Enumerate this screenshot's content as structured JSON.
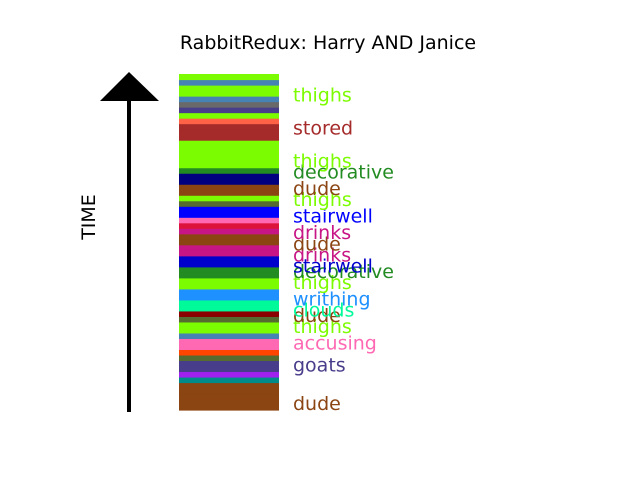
{
  "chart_data": {
    "type": "bar",
    "title": "RabbitRedux: Harry AND Janice",
    "ylabel": "TIME",
    "xlabel": "",
    "stripes": [
      {
        "color": "#8b4513"
      },
      {
        "color": "#8b4513"
      },
      {
        "color": "#8b4513"
      },
      {
        "color": "#8b4513"
      },
      {
        "color": "#8b4513"
      },
      {
        "color": "#008b8b"
      },
      {
        "color": "#a020f0"
      },
      {
        "color": "#483d8b"
      },
      {
        "color": "#483d8b"
      },
      {
        "color": "#556b2f"
      },
      {
        "color": "#ff4500"
      },
      {
        "color": "#ff69b4"
      },
      {
        "color": "#ff69b4"
      },
      {
        "color": "#4682b4"
      },
      {
        "color": "#7cfc00"
      },
      {
        "color": "#7cfc00"
      },
      {
        "color": "#556b2f"
      },
      {
        "color": "#8b0000"
      },
      {
        "color": "#00fa9a"
      },
      {
        "color": "#00fa9a"
      },
      {
        "color": "#1e90ff"
      },
      {
        "color": "#1e90ff"
      },
      {
        "color": "#7cfc00"
      },
      {
        "color": "#7cfc00"
      },
      {
        "color": "#228b22"
      },
      {
        "color": "#228b22"
      },
      {
        "color": "#0000cd"
      },
      {
        "color": "#0000cd"
      },
      {
        "color": "#c71585"
      },
      {
        "color": "#c71585"
      },
      {
        "color": "#8b4513"
      },
      {
        "color": "#8b4513"
      },
      {
        "color": "#c71585"
      },
      {
        "color": "#dc143c"
      },
      {
        "color": "#ff69b4"
      },
      {
        "color": "#0000ff"
      },
      {
        "color": "#0000ff"
      },
      {
        "color": "#556b2f"
      },
      {
        "color": "#7cfc00"
      },
      {
        "color": "#8b4513"
      },
      {
        "color": "#8b4513"
      },
      {
        "color": "#000080"
      },
      {
        "color": "#000080"
      },
      {
        "color": "#228b22"
      },
      {
        "color": "#7cfc00"
      },
      {
        "color": "#7cfc00"
      },
      {
        "color": "#7cfc00"
      },
      {
        "color": "#7cfc00"
      },
      {
        "color": "#7cfc00"
      },
      {
        "color": "#a52a2a"
      },
      {
        "color": "#a52a2a"
      },
      {
        "color": "#a52a2a"
      },
      {
        "color": "#ff6347"
      },
      {
        "color": "#7cfc00"
      },
      {
        "color": "#483d8b"
      },
      {
        "color": "#696969"
      },
      {
        "color": "#4682b4"
      },
      {
        "color": "#7cfc00"
      },
      {
        "color": "#7cfc00"
      },
      {
        "color": "#4682b4"
      },
      {
        "color": "#7cfc00"
      }
    ],
    "labels": [
      {
        "text": "dude",
        "position": 1,
        "color": "#8b4513"
      },
      {
        "text": "goats",
        "position": 8,
        "color": "#483d8b"
      },
      {
        "text": "accusing",
        "position": 12,
        "color": "#ff69b4"
      },
      {
        "text": "thighs",
        "position": 15,
        "color": "#7cfc00"
      },
      {
        "text": "dude",
        "position": 17,
        "color": "#8b4513"
      },
      {
        "text": "clouds",
        "position": 18,
        "color": "#00fa9a"
      },
      {
        "text": "writhing",
        "position": 20,
        "color": "#1e90ff"
      },
      {
        "text": "thighs",
        "position": 23,
        "color": "#7cfc00"
      },
      {
        "text": "decorative",
        "position": 25,
        "color": "#228b22"
      },
      {
        "text": "stairwell",
        "position": 26,
        "color": "#0000cd"
      },
      {
        "text": "drinks",
        "position": 28,
        "color": "#c71585"
      },
      {
        "text": "dude",
        "position": 30,
        "color": "#8b4513"
      },
      {
        "text": "drinks",
        "position": 32,
        "color": "#c71585"
      },
      {
        "text": "stairwell",
        "position": 35,
        "color": "#0000ff"
      },
      {
        "text": "thighs",
        "position": 38,
        "color": "#7cfc00"
      },
      {
        "text": "dude",
        "position": 40,
        "color": "#8b4513"
      },
      {
        "text": "decorative",
        "position": 43,
        "color": "#228b22"
      },
      {
        "text": "thighs",
        "position": 45,
        "color": "#7cfc00"
      },
      {
        "text": "stored",
        "position": 51,
        "color": "#a52a2a"
      },
      {
        "text": "thighs",
        "position": 57,
        "color": "#7cfc00"
      }
    ]
  }
}
